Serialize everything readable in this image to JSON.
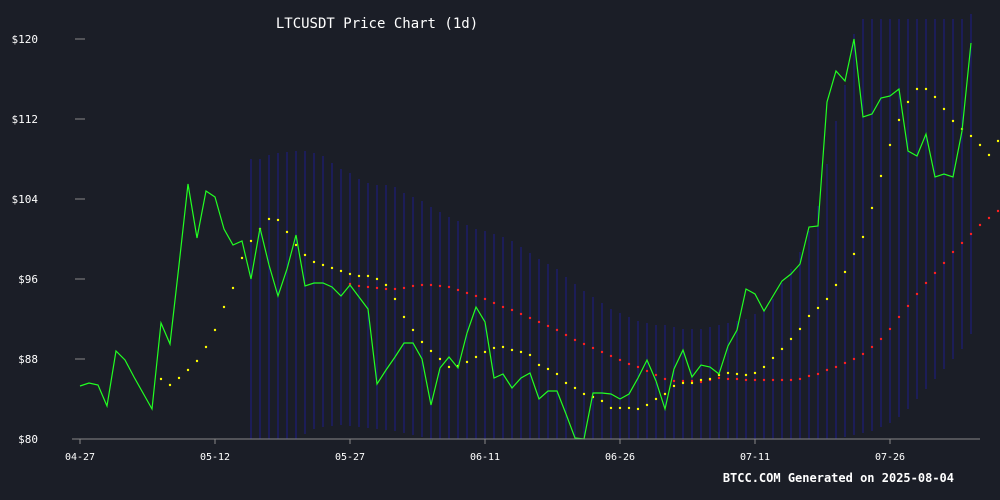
{
  "chart_data": {
    "type": "line",
    "title": "LTCUSDT Price Chart (1d)",
    "footer": "BTCC.COM Generated on 2025-08-04",
    "xlabel": "",
    "ylabel": "",
    "ylim": [
      80,
      122
    ],
    "y_ticks": [
      {
        "value": 80,
        "label": "$80"
      },
      {
        "value": 88,
        "label": "$88"
      },
      {
        "value": 96,
        "label": "$96"
      },
      {
        "value": 104,
        "label": "$104"
      },
      {
        "value": 112,
        "label": "$112"
      },
      {
        "value": 120,
        "label": "$120"
      }
    ],
    "x_ticks": [
      {
        "date": "2025-04-27",
        "label": "04-27"
      },
      {
        "date": "2025-05-12",
        "label": "05-12"
      },
      {
        "date": "2025-05-27",
        "label": "05-27"
      },
      {
        "date": "2025-06-11",
        "label": "06-11"
      },
      {
        "date": "2025-06-26",
        "label": "06-26"
      },
      {
        "date": "2025-07-11",
        "label": "07-11"
      },
      {
        "date": "2025-07-26",
        "label": "07-26"
      }
    ],
    "x_range": [
      "2025-04-27",
      "2025-08-04"
    ],
    "colors": {
      "price": "#22ff22",
      "psar": "#ffff00",
      "slow_ma": "#ff2020",
      "bands": "#1c1c8a",
      "background": "#1b1e27"
    },
    "series": [
      {
        "key": "price",
        "style": "line",
        "start": "2025-04-27",
        "values": [
          85.3,
          85.6,
          85.4,
          83.3,
          88.8,
          87.9,
          86.2,
          84.6,
          83.0,
          91.6,
          89.5,
          97.4,
          105.5,
          100.1,
          104.8,
          104.2,
          101.0,
          99.4,
          99.8,
          96.0,
          101.1,
          97.4,
          94.3,
          97.0,
          100.4,
          95.3,
          95.6,
          95.6,
          95.2,
          94.3,
          95.4,
          94.2,
          93.0,
          85.5,
          86.9,
          88.2,
          89.6,
          89.6,
          88.0,
          83.4,
          87.1,
          88.2,
          87.1,
          90.6,
          93.2,
          91.7,
          86.1,
          86.5,
          85.1,
          86.1,
          86.6,
          84.0,
          84.8,
          84.8,
          82.5,
          80.1,
          80.0,
          84.6,
          84.6,
          84.5,
          84.0,
          84.5,
          86.1,
          87.9,
          85.8,
          83.0,
          87.0,
          88.9,
          86.2,
          87.4,
          87.2,
          86.5,
          89.3,
          90.9,
          95.0,
          94.5,
          92.8,
          94.3,
          95.8,
          96.5,
          97.5,
          101.2,
          101.3,
          113.7,
          116.8,
          115.8,
          120.0,
          112.2,
          112.5,
          114.1,
          114.3,
          115.0,
          108.8,
          108.3,
          110.5,
          106.2,
          106.5,
          106.2,
          110.8,
          119.6
        ]
      },
      {
        "key": "psar",
        "style": "dots",
        "start": "2025-05-06",
        "values": [
          86.0,
          85.4,
          86.1,
          86.9,
          87.8,
          89.2,
          90.9,
          93.2,
          95.1,
          98.1,
          99.8,
          101.0,
          102.0,
          101.9,
          100.7,
          99.4,
          98.4,
          97.7,
          97.4,
          97.1,
          96.8,
          96.5,
          96.3,
          96.3,
          96.0,
          95.4,
          94.0,
          92.2,
          90.9,
          89.7,
          88.8,
          88.0,
          87.2,
          87.3,
          87.7,
          88.2,
          88.7,
          89.1,
          89.2,
          88.9,
          88.7,
          88.4,
          87.4,
          87.0,
          86.5,
          85.6,
          85.1,
          84.5,
          84.2,
          83.8,
          83.1,
          83.1,
          83.1,
          83.0,
          83.4,
          84.0,
          84.5,
          85.3,
          85.6,
          85.6,
          85.9,
          86.0,
          86.4,
          86.6,
          86.5,
          86.4,
          86.6,
          87.2,
          88.1,
          89.0,
          90.0,
          91.0,
          92.3,
          93.1,
          94.0,
          95.4,
          96.7,
          98.5,
          100.2,
          103.1,
          106.3,
          109.4,
          111.9,
          113.7,
          115.0,
          115.0,
          114.2,
          113.0,
          111.8,
          111.0,
          110.3,
          109.4,
          108.4,
          109.8
        ]
      },
      {
        "key": "slow_ma",
        "style": "dots",
        "start": "2025-05-27",
        "values": [
          95.5,
          95.3,
          95.2,
          95.1,
          95.0,
          95.0,
          95.1,
          95.3,
          95.4,
          95.4,
          95.3,
          95.2,
          94.9,
          94.6,
          94.3,
          94.0,
          93.6,
          93.2,
          92.9,
          92.5,
          92.1,
          91.7,
          91.3,
          90.9,
          90.4,
          89.9,
          89.5,
          89.1,
          88.7,
          88.3,
          87.9,
          87.5,
          87.2,
          86.8,
          86.4,
          86.0,
          85.8,
          85.8,
          85.8,
          85.7,
          85.9,
          86.1,
          86.0,
          86.0,
          85.9,
          85.9,
          85.9,
          85.9,
          85.9,
          85.9,
          86.0,
          86.3,
          86.5,
          86.9,
          87.2,
          87.6,
          88.0,
          88.5,
          89.2,
          90.0,
          91.0,
          92.2,
          93.3,
          94.5,
          95.6,
          96.6,
          97.6,
          98.7,
          99.6,
          100.5,
          101.4,
          102.1,
          102.8,
          103.6,
          104.7
        ]
      }
    ],
    "bands": {
      "start": "2025-05-16",
      "upper": [
        108,
        108,
        108.4,
        108.6,
        108.7,
        108.8,
        108.8,
        108.6,
        108.3,
        107.6,
        107.0,
        106.6,
        106.0,
        105.6,
        105.4,
        105.4,
        105.2,
        104.6,
        104.2,
        103.8,
        103.2,
        102.7,
        102.2,
        101.8,
        101.4,
        101.0,
        100.8,
        100.5,
        100.2,
        99.8,
        99.2,
        98.6,
        98.0,
        97.5,
        97.0,
        96.2,
        95.5,
        94.8,
        94.2,
        93.6,
        93.0,
        92.6,
        92.2,
        91.8,
        91.6,
        91.4,
        91.4,
        91.2,
        91.0,
        91.0,
        91.0,
        91.2,
        91.4,
        91.6,
        91.8,
        92.0,
        92.5,
        93.0,
        94.0,
        95.6,
        97.0,
        98.7,
        100.8,
        103.3,
        107.5,
        111.8,
        115.4,
        120.5,
        122,
        122,
        122,
        122,
        122,
        122,
        122,
        122,
        122,
        122,
        122,
        122,
        122.5
      ],
      "lower": [
        79,
        79,
        79,
        79,
        79.5,
        80,
        80.5,
        81,
        81.2,
        81.3,
        81.4,
        81.3,
        81.2,
        81.1,
        81.0,
        80.9,
        80.8,
        80.6,
        80.4,
        80.2,
        80.0,
        80.0,
        80.0,
        80.0,
        80.0,
        80.0,
        80.0,
        80.0,
        80.0,
        80.0,
        80.0,
        80.0,
        80.0,
        80.0,
        80.0,
        80.0,
        80.0,
        80.0,
        80.0,
        80.0,
        80.0,
        80.0,
        80.0,
        80.0,
        80.0,
        80.0,
        80.0,
        80.0,
        80.0,
        80.0,
        80.0,
        80.0,
        80.0,
        80.0,
        80.0,
        80.0,
        80.0,
        80.0,
        80.0,
        80.0,
        80.0,
        80.0,
        80.0,
        80.0,
        80.0,
        80.0,
        80.2,
        80.4,
        80.6,
        80.8,
        81.2,
        81.6,
        82.2,
        83.0,
        84.0,
        85.0,
        86.0,
        87.0,
        88.0,
        89.0,
        90.5
      ]
    }
  }
}
